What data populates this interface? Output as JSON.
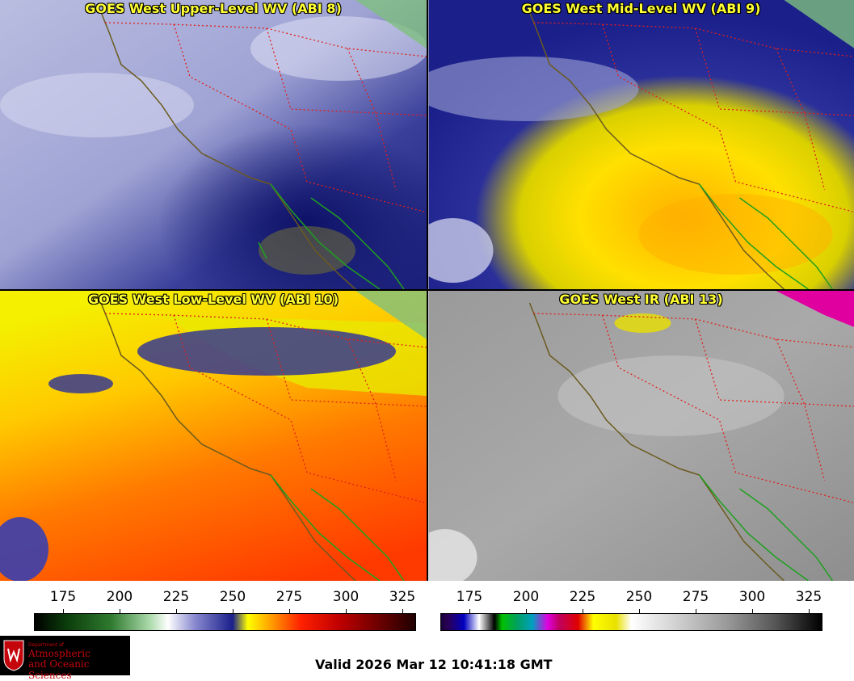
{
  "panels": [
    {
      "title": "GOES West Upper-Level WV (ABI 8)"
    },
    {
      "title": "GOES West Mid-Level WV (ABI 9)"
    },
    {
      "title": "GOES West Low-Level WV (ABI 10)"
    },
    {
      "title": "GOES West IR (ABI 13)"
    }
  ],
  "colorbars": {
    "wv_ticks": [
      "175",
      "200",
      "225",
      "250",
      "275",
      "300",
      "325"
    ],
    "ir_ticks": [
      "175",
      "200",
      "225",
      "250",
      "275",
      "300",
      "325"
    ]
  },
  "logo": {
    "line1": "Department of",
    "line2": "Atmospheric",
    "line3": "and Oceanic Sciences"
  },
  "valid_time": "Valid 2026 Mar 12 10:41:18 GMT",
  "colors": {
    "title_text": "#ffff33",
    "coastline": "#6b5a1e",
    "state_border": "#e0201c",
    "mexico_coast": "#1fa01f"
  }
}
